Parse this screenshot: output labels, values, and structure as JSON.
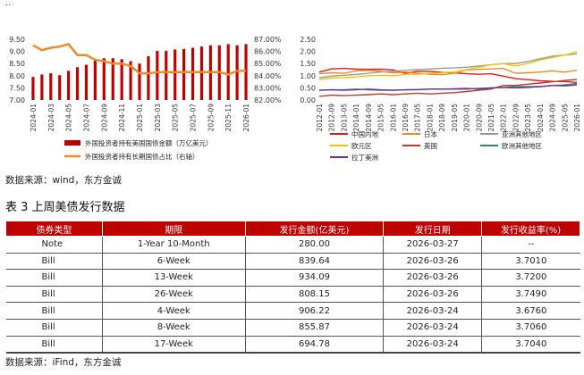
{
  "top_marker": "..",
  "colors": {
    "bar": "#c00000",
    "line": "#f08a24",
    "header_bg": "#c00000"
  },
  "left_chart_legend": {
    "bar_label": "外国投资者持有美国国债金额（万亿美元）",
    "line_label": "外国投资者持有长期国债占比（右轴）"
  },
  "source1": "数据来源：wind，东方金诚",
  "table_title": "表 3  上周美债发行数据",
  "table": {
    "headers": [
      "债券类型",
      "期限",
      "发行金额(亿美元)",
      "发行日期",
      "发行收益率(%)"
    ],
    "rows": [
      [
        "Note",
        "1-Year 10-Month",
        "280.00",
        "2026-03-27",
        "--"
      ],
      [
        "Bill",
        "6-Week",
        "839.64",
        "2026-03-26",
        "3.7010"
      ],
      [
        "Bill",
        "13-Week",
        "934.09",
        "2026-03-26",
        "3.7200"
      ],
      [
        "Bill",
        "26-Week",
        "808.15",
        "2026-03-26",
        "3.7490"
      ],
      [
        "Bill",
        "4-Week",
        "906.22",
        "2026-03-24",
        "3.6760"
      ],
      [
        "Bill",
        "8-Week",
        "855.87",
        "2026-03-24",
        "3.7060"
      ],
      [
        "Bill",
        "17-Week",
        "694.78",
        "2026-03-24",
        "3.7040"
      ]
    ]
  },
  "source2": "数据来源：iFind，东方金诚",
  "chart_data": [
    {
      "type": "bar",
      "categories": [
        "2024-01",
        "2024-02",
        "2024-03",
        "2024-04",
        "2024-05",
        "2024-06",
        "2024-07",
        "2024-08",
        "2024-09",
        "2024-10",
        "2024-11",
        "2024-12",
        "2025-01",
        "2025-02",
        "2025-03",
        "2025-04",
        "2025-05",
        "2025-06",
        "2025-07",
        "2025-08",
        "2025-09",
        "2025-10",
        "2025-11",
        "2025-12",
        "2026-01"
      ],
      "xticks": [
        "2024-01",
        "2024-03",
        "2024-05",
        "2024-07",
        "2024-09",
        "2024-11",
        "2025-01",
        "2025-03",
        "2025-05",
        "2025-07",
        "2025-09",
        "2025-11",
        "2026-01"
      ],
      "series": [
        {
          "name": "外国投资者持有美国国债金额（万亿美元）",
          "axis": "left",
          "type": "bar",
          "values": [
            7.95,
            8.05,
            8.1,
            8.02,
            8.2,
            8.35,
            8.45,
            8.65,
            8.72,
            8.72,
            8.68,
            8.6,
            8.5,
            8.8,
            9.02,
            9.02,
            9.08,
            9.1,
            9.15,
            9.2,
            9.25,
            9.25,
            9.3,
            9.25,
            9.3
          ]
        },
        {
          "name": "外国投资者持有长期国债占比（右轴）",
          "axis": "right",
          "type": "line",
          "values": [
            86.5,
            86.1,
            86.3,
            86.4,
            86.6,
            85.7,
            85.7,
            85.3,
            85.2,
            85.0,
            85.0,
            84.8,
            84.2,
            84.2,
            84.3,
            84.3,
            84.3,
            84.3,
            84.3,
            84.3,
            84.3,
            84.3,
            84.1,
            84.4,
            84.4
          ]
        }
      ],
      "yleft_ticks": [
        "9.50",
        "9.00",
        "8.50",
        "8.00",
        "7.50",
        "7.00"
      ],
      "yleft_lim": [
        7.0,
        9.5
      ],
      "yright_ticks": [
        "87.00%",
        "86.00%",
        "85.00%",
        "84.00%",
        "83.00%",
        "82.00%"
      ],
      "yright_lim": [
        82,
        87
      ],
      "grid": false,
      "legend": "bottom"
    },
    {
      "type": "line",
      "x": [
        "2012-01",
        "2012-09",
        "2013-05",
        "2014-01",
        "2014-09",
        "2015-05",
        "2016-01",
        "2016-09",
        "2017-05",
        "2018-01",
        "2018-09",
        "2019-05",
        "2020-01",
        "2020-09",
        "2021-05",
        "2022-01",
        "2022-09",
        "2023-05",
        "2024-01",
        "2024-09",
        "2025-05",
        "2026-01"
      ],
      "series": [
        {
          "name": "中国内地",
          "color": "#e41a1c",
          "values": [
            1.15,
            1.28,
            1.3,
            1.27,
            1.26,
            1.27,
            1.24,
            1.1,
            1.18,
            1.18,
            1.14,
            1.12,
            1.08,
            1.06,
            1.08,
            0.98,
            0.88,
            0.84,
            0.79,
            0.77,
            0.76,
            0.72
          ]
        },
        {
          "name": "日本",
          "color": "#f08a24",
          "values": [
            1.08,
            1.12,
            1.1,
            1.2,
            1.22,
            1.18,
            1.12,
            1.15,
            1.1,
            1.06,
            1.04,
            1.1,
            1.24,
            1.26,
            1.28,
            1.3,
            1.1,
            1.12,
            1.15,
            1.2,
            1.15,
            1.22
          ]
        },
        {
          "name": "亚洲其他地区",
          "color": "#999999",
          "values": [
            0.92,
            0.98,
            1.02,
            1.05,
            1.1,
            1.15,
            1.18,
            1.22,
            1.25,
            1.28,
            1.3,
            1.32,
            1.35,
            1.4,
            1.45,
            1.5,
            1.5,
            1.58,
            1.7,
            1.8,
            1.85,
            1.9
          ]
        },
        {
          "name": "欧元区",
          "color": "#f5c400",
          "values": [
            0.85,
            0.9,
            0.92,
            0.95,
            1.0,
            1.02,
            1.0,
            1.05,
            1.05,
            1.1,
            1.12,
            1.15,
            1.25,
            1.35,
            1.45,
            1.5,
            1.4,
            1.5,
            1.65,
            1.75,
            1.85,
            1.98
          ]
        },
        {
          "name": "英国",
          "color": "#c0392b",
          "values": [
            0.15,
            0.2,
            0.18,
            0.2,
            0.22,
            0.25,
            0.22,
            0.25,
            0.28,
            0.25,
            0.28,
            0.3,
            0.35,
            0.4,
            0.45,
            0.6,
            0.6,
            0.65,
            0.7,
            0.75,
            0.8,
            0.85
          ]
        },
        {
          "name": "欧洲其他地区",
          "color": "#2e8b57",
          "values": [
            0.4,
            0.42,
            0.42,
            0.45,
            0.42,
            0.4,
            0.4,
            0.42,
            0.42,
            0.45,
            0.45,
            0.45,
            0.45,
            0.48,
            0.5,
            0.52,
            0.55,
            0.55,
            0.55,
            0.6,
            0.62,
            0.68
          ]
        },
        {
          "name": "拉丁美洲",
          "color": "#7030a0",
          "values": [
            0.4,
            0.42,
            0.4,
            0.42,
            0.45,
            0.42,
            0.4,
            0.42,
            0.43,
            0.45,
            0.45,
            0.46,
            0.48,
            0.45,
            0.5,
            0.52,
            0.5,
            0.52,
            0.55,
            0.6,
            0.58,
            0.62
          ]
        }
      ],
      "y_ticks": [
        "2.50",
        "2.00",
        "1.50",
        "1.00",
        "0.50",
        "0.00"
      ],
      "ylim": [
        0,
        2.5
      ],
      "grid": false,
      "legend": "bottom"
    }
  ]
}
